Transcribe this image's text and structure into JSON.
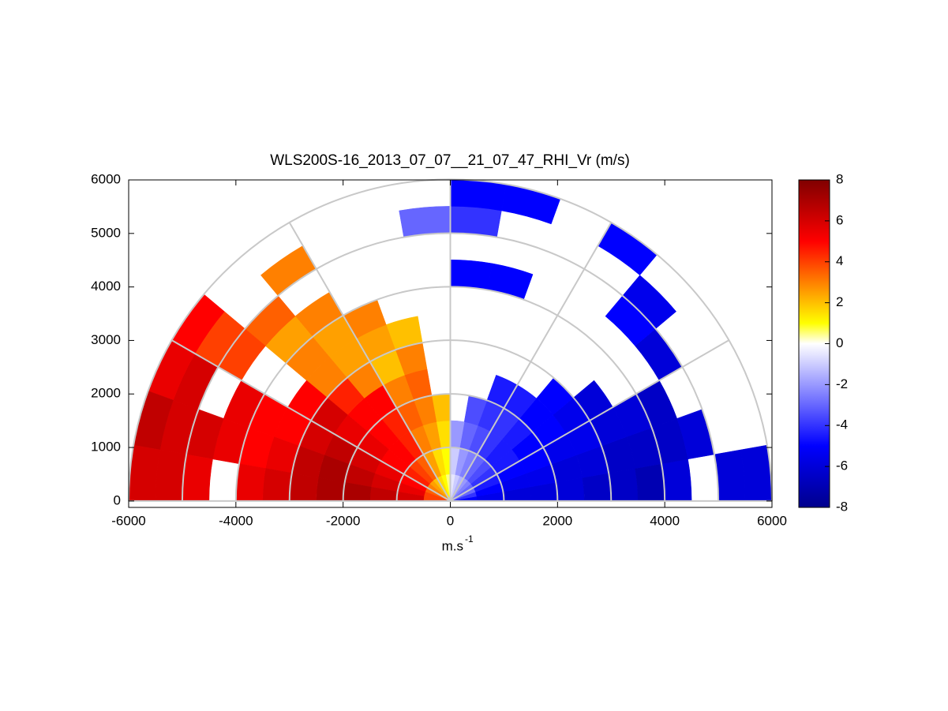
{
  "chart_data": {
    "type": "rhi",
    "title": "WLS200S-16_2013_07_07__21_07_47_RHI_Vr (m/s)",
    "xlabel": "m.s",
    "xlabel_sup": "-1",
    "xlim": [
      -6000,
      6000
    ],
    "ylim": [
      -120,
      6000
    ],
    "xticks": [
      -6000,
      -4000,
      -2000,
      0,
      2000,
      4000,
      6000
    ],
    "yticks": [
      0,
      1000,
      2000,
      3000,
      4000,
      5000,
      6000
    ],
    "rings": [
      1000,
      2000,
      3000,
      4000,
      5000,
      6000
    ],
    "spokes": [
      0,
      30,
      60,
      90,
      120,
      150,
      180
    ],
    "angles": [
      0,
      10,
      20,
      30,
      40,
      50,
      60,
      70,
      80,
      90,
      100,
      110,
      120,
      130,
      140,
      150,
      160,
      170,
      180
    ],
    "ranges": [
      0,
      500,
      1000,
      1500,
      2000,
      2500,
      3000,
      3500,
      4000,
      4500,
      5000,
      5500,
      6000
    ],
    "field": [
      [
        -5,
        -5.5,
        -6,
        -6,
        -6,
        -6.5,
        -6.5,
        -7,
        -6,
        null,
        -6,
        -6
      ],
      [
        -4,
        -5,
        -5.5,
        -5.5,
        -6,
        -6,
        -6.5,
        -6.5,
        -6.5,
        -6,
        null,
        null
      ],
      [
        -3,
        -4.5,
        -5,
        -5,
        -5.5,
        -5.5,
        -6,
        -6,
        -6.5,
        null,
        null,
        null
      ],
      [
        -3,
        -4,
        -4.5,
        -5,
        -5,
        -5.5,
        -6,
        null,
        null,
        -6,
        null,
        null
      ],
      [
        -2.5,
        -3.5,
        -4.5,
        -4.5,
        -5,
        -5,
        null,
        null,
        null,
        -5,
        -5.5,
        null
      ],
      [
        -2,
        -3,
        -4,
        -4,
        -4.5,
        null,
        null,
        null,
        null,
        null,
        null,
        -5
      ],
      [
        -1.5,
        -2.5,
        -3.5,
        -4,
        -4.5,
        null,
        null,
        null,
        null,
        null,
        null,
        null
      ],
      [
        -1,
        -2,
        -3,
        -3.5,
        null,
        null,
        null,
        null,
        -5,
        null,
        null,
        -5
      ],
      [
        -0.5,
        -1,
        -2,
        null,
        null,
        null,
        null,
        null,
        -5,
        null,
        -4,
        -5
      ],
      [
        0.5,
        1,
        1.5,
        2,
        null,
        null,
        null,
        null,
        null,
        null,
        -3,
        null
      ],
      [
        1,
        1.5,
        2.5,
        3,
        3.5,
        3,
        2,
        null,
        null,
        null,
        null,
        null
      ],
      [
        1.5,
        2.5,
        3,
        3.5,
        3,
        2,
        2.5,
        3,
        null,
        null,
        null,
        null
      ],
      [
        2,
        3.5,
        4.5,
        4.5,
        5,
        3,
        2.5,
        2.5,
        3,
        null,
        3,
        null
      ],
      [
        2.5,
        4,
        5,
        5,
        5,
        4.5,
        3,
        3,
        2.5,
        3.5,
        null,
        null
      ],
      [
        3,
        4.5,
        5,
        5.5,
        5.5,
        6,
        5,
        null,
        null,
        4,
        4,
        5
      ],
      [
        3.5,
        5,
        5.5,
        6,
        6.5,
        6,
        5,
        5,
        5.5,
        null,
        6,
        5.5
      ],
      [
        4,
        5.5,
        6,
        6.5,
        7,
        6.5,
        5.5,
        5,
        5.5,
        6,
        6,
        6.5
      ],
      [
        4,
        6,
        6.5,
        7,
        7,
        6.5,
        6,
        5.5,
        null,
        5.5,
        6,
        6
      ]
    ],
    "clim": [
      -8,
      8
    ],
    "cticks": [
      -8,
      -6,
      -4,
      -2,
      0,
      2,
      4,
      6,
      8
    ],
    "colormap": [
      {
        "value": -8,
        "color": "#00008c"
      },
      {
        "value": -5,
        "color": "#0000ff"
      },
      {
        "value": 0,
        "color": "#ffffff"
      },
      {
        "value": 1,
        "color": "#ffff00"
      },
      {
        "value": 3,
        "color": "#ff8000"
      },
      {
        "value": 5,
        "color": "#ff0000"
      },
      {
        "value": 8,
        "color": "#800000"
      }
    ]
  }
}
